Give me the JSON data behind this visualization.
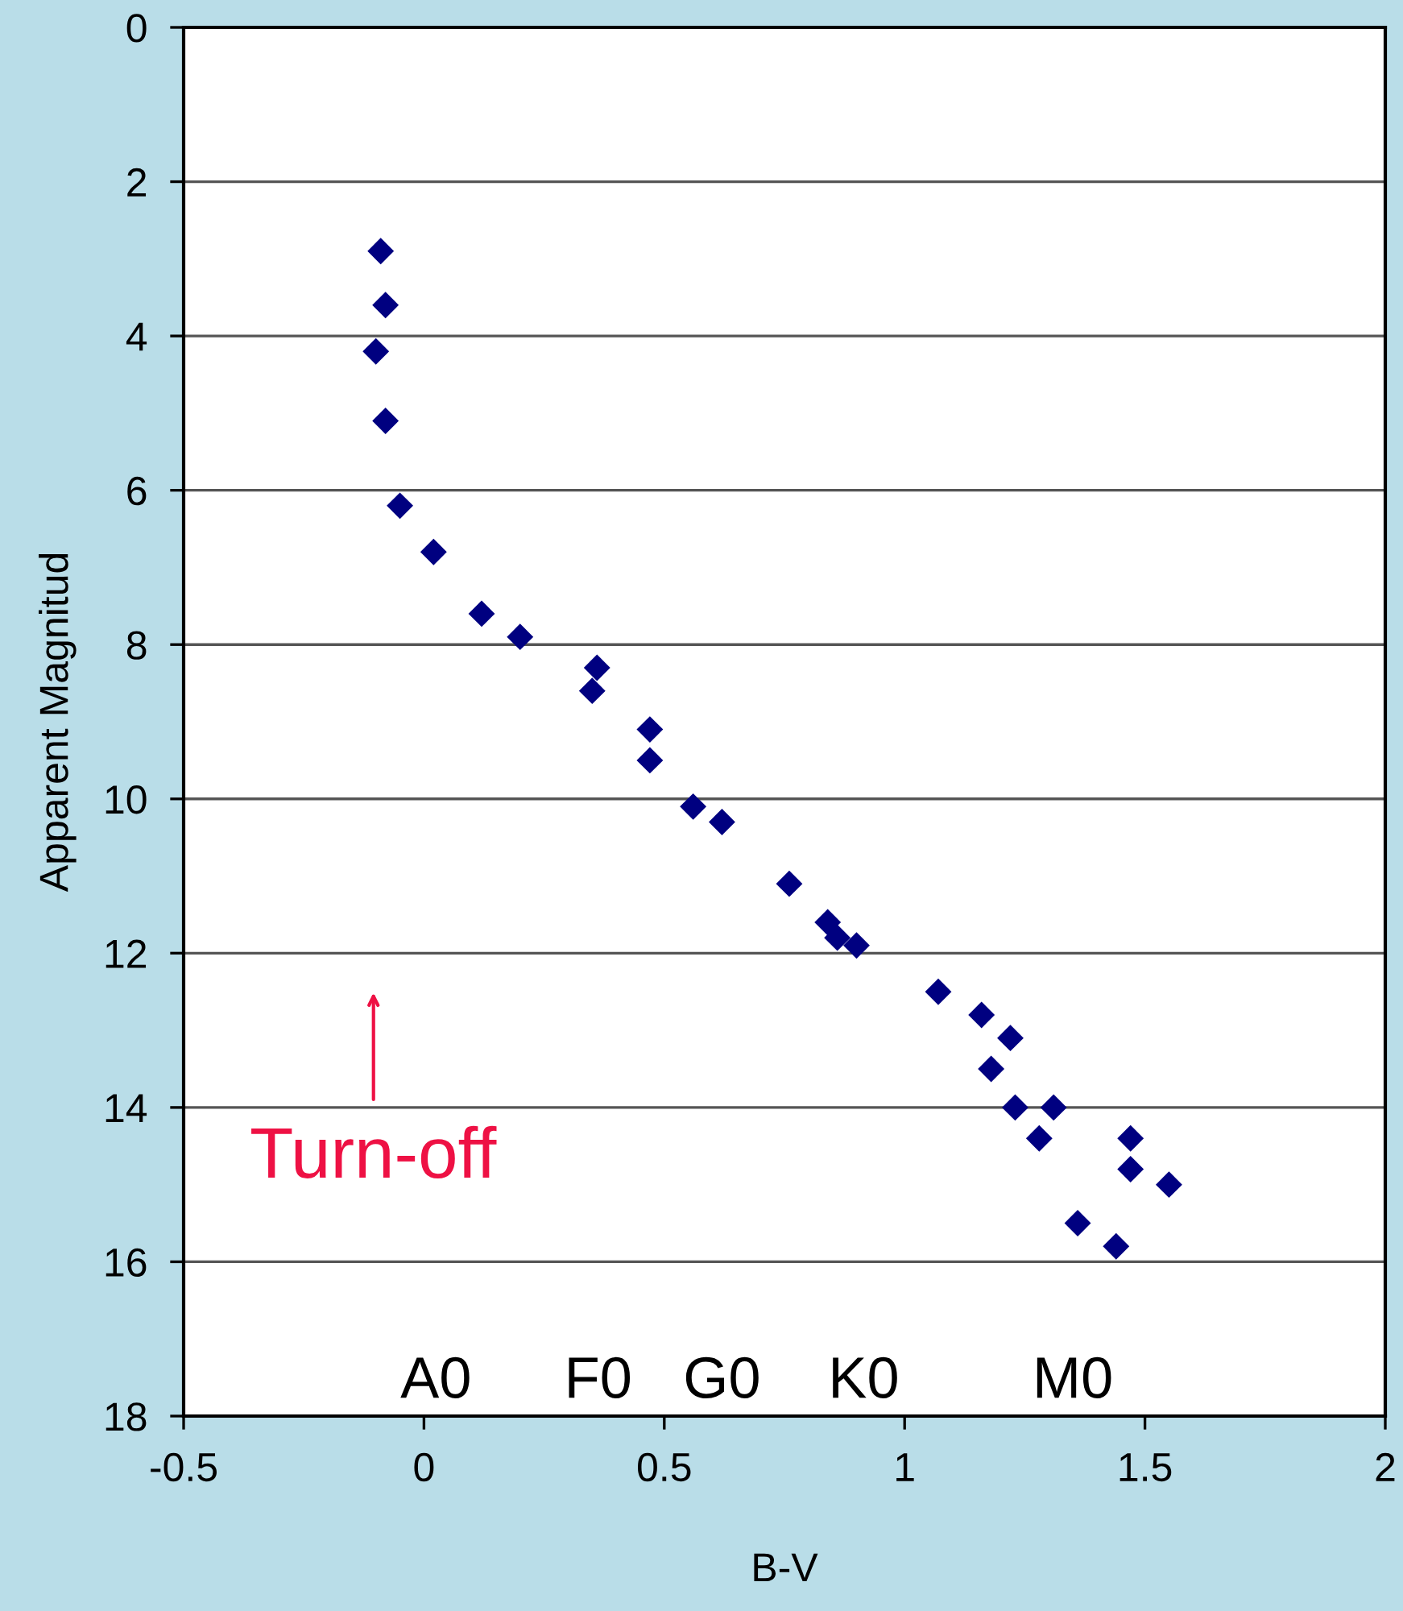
{
  "chart_data": {
    "type": "scatter",
    "xlabel": "B-V",
    "ylabel": "Apparent Magnitud",
    "x": [
      -0.09,
      -0.08,
      -0.1,
      -0.08,
      -0.05,
      0.02,
      0.12,
      0.2,
      0.36,
      0.35,
      0.47,
      0.47,
      0.56,
      0.62,
      0.76,
      0.84,
      0.86,
      0.9,
      1.07,
      1.16,
      1.22,
      1.18,
      1.23,
      1.31,
      1.28,
      1.47,
      1.47,
      1.55,
      1.36,
      1.44
    ],
    "series": [
      {
        "color": "#000080",
        "values": [
          2.9,
          3.6,
          4.2,
          5.1,
          6.2,
          6.8,
          7.6,
          7.9,
          8.3,
          8.6,
          9.1,
          9.5,
          10.1,
          10.3,
          11.1,
          11.6,
          11.8,
          11.9,
          12.5,
          12.8,
          13.1,
          13.5,
          14.0,
          14.0,
          14.4,
          14.4,
          14.8,
          15.0,
          15.5,
          15.8
        ]
      }
    ],
    "xlim": [
      -0.5,
      2
    ],
    "xticks": [
      -0.5,
      0,
      0.5,
      1,
      1.5,
      2
    ],
    "ylim": [
      18,
      0
    ],
    "yticks": [
      0,
      2,
      4,
      6,
      8,
      10,
      12,
      14,
      16,
      18
    ],
    "grid": "y",
    "marker": "diamond",
    "annotations": [
      "A0",
      "F0",
      "G0",
      "K0",
      "M0",
      "Turn-off"
    ]
  }
}
